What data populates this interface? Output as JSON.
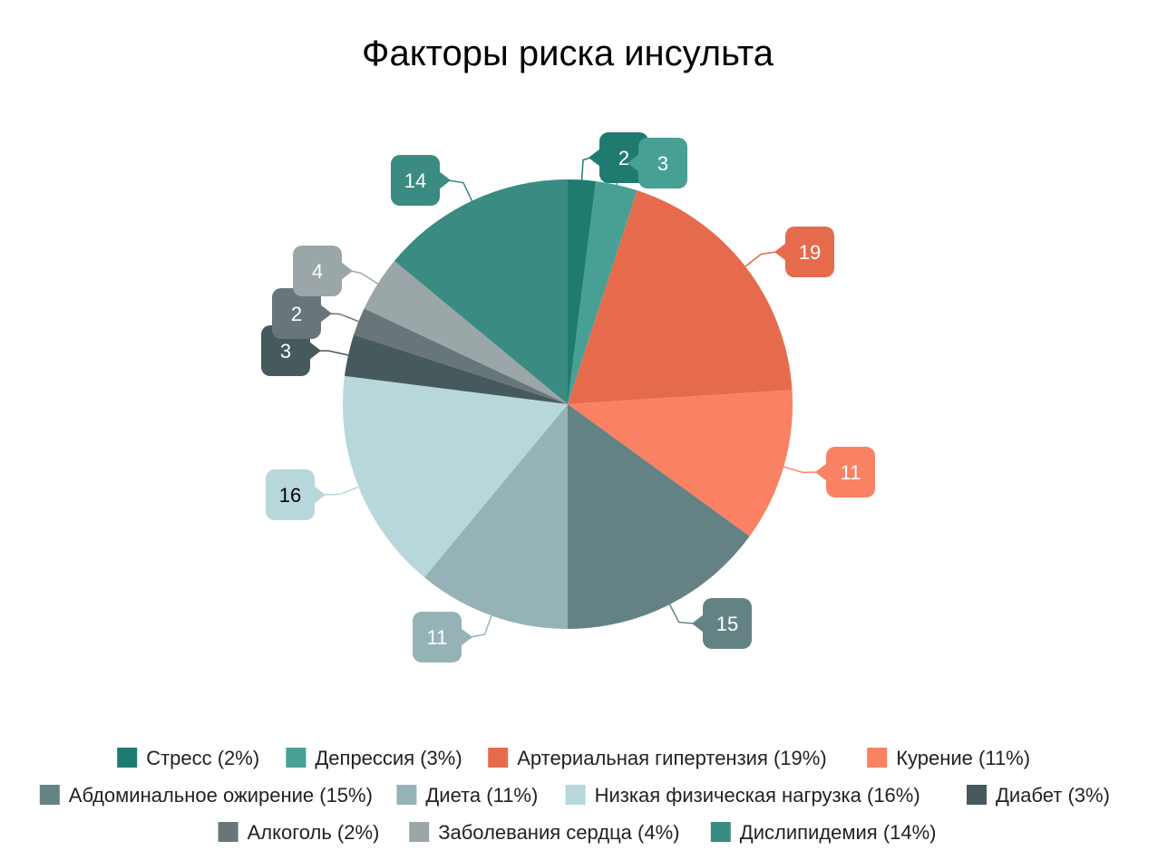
{
  "chart_data": {
    "type": "pie",
    "title": "Факторы риска инсульта",
    "start_angle_deg": 0,
    "direction": "clockwise",
    "legend_position": "bottom",
    "slices": [
      {
        "name": "Стресс",
        "value": 2,
        "percent_label": "(2%)",
        "color": "#1f7b70",
        "label_color": "#ffffff"
      },
      {
        "name": "Депрессия",
        "value": 3,
        "percent_label": "(3%)",
        "color": "#48a095",
        "label_color": "#ffffff"
      },
      {
        "name": "Артериальная гипертензия",
        "value": 19,
        "percent_label": "(19%)",
        "color": "#e66b4c",
        "label_color": "#ffffff"
      },
      {
        "name": "Курение",
        "value": 11,
        "percent_label": "(11%)",
        "color": "#fa8163",
        "label_color": "#ffffff"
      },
      {
        "name": "Абдоминальное ожирение",
        "value": 15,
        "percent_label": "(15%)",
        "color": "#648284",
        "label_color": "#ffffff"
      },
      {
        "name": "Диета",
        "value": 11,
        "percent_label": "(11%)",
        "color": "#95b3b7",
        "label_color": "#ffffff"
      },
      {
        "name": "Низкая физическая нагрузка",
        "value": 16,
        "percent_label": "(16%)",
        "color": "#b8d7db",
        "label_color": "#000000"
      },
      {
        "name": "Диабет",
        "value": 3,
        "percent_label": "(3%)",
        "color": "#465a5e",
        "label_color": "#ffffff"
      },
      {
        "name": "Алкоголь",
        "value": 2,
        "percent_label": "(2%)",
        "color": "#687679",
        "label_color": "#ffffff"
      },
      {
        "name": "Заболевания сердца",
        "value": 4,
        "percent_label": "(4%)",
        "color": "#9aa6a8",
        "label_color": "#ffffff"
      },
      {
        "name": "Дислипидемия",
        "value": 14,
        "percent_label": "(14%)",
        "color": "#3a8b82",
        "label_color": "#ffffff"
      }
    ]
  }
}
